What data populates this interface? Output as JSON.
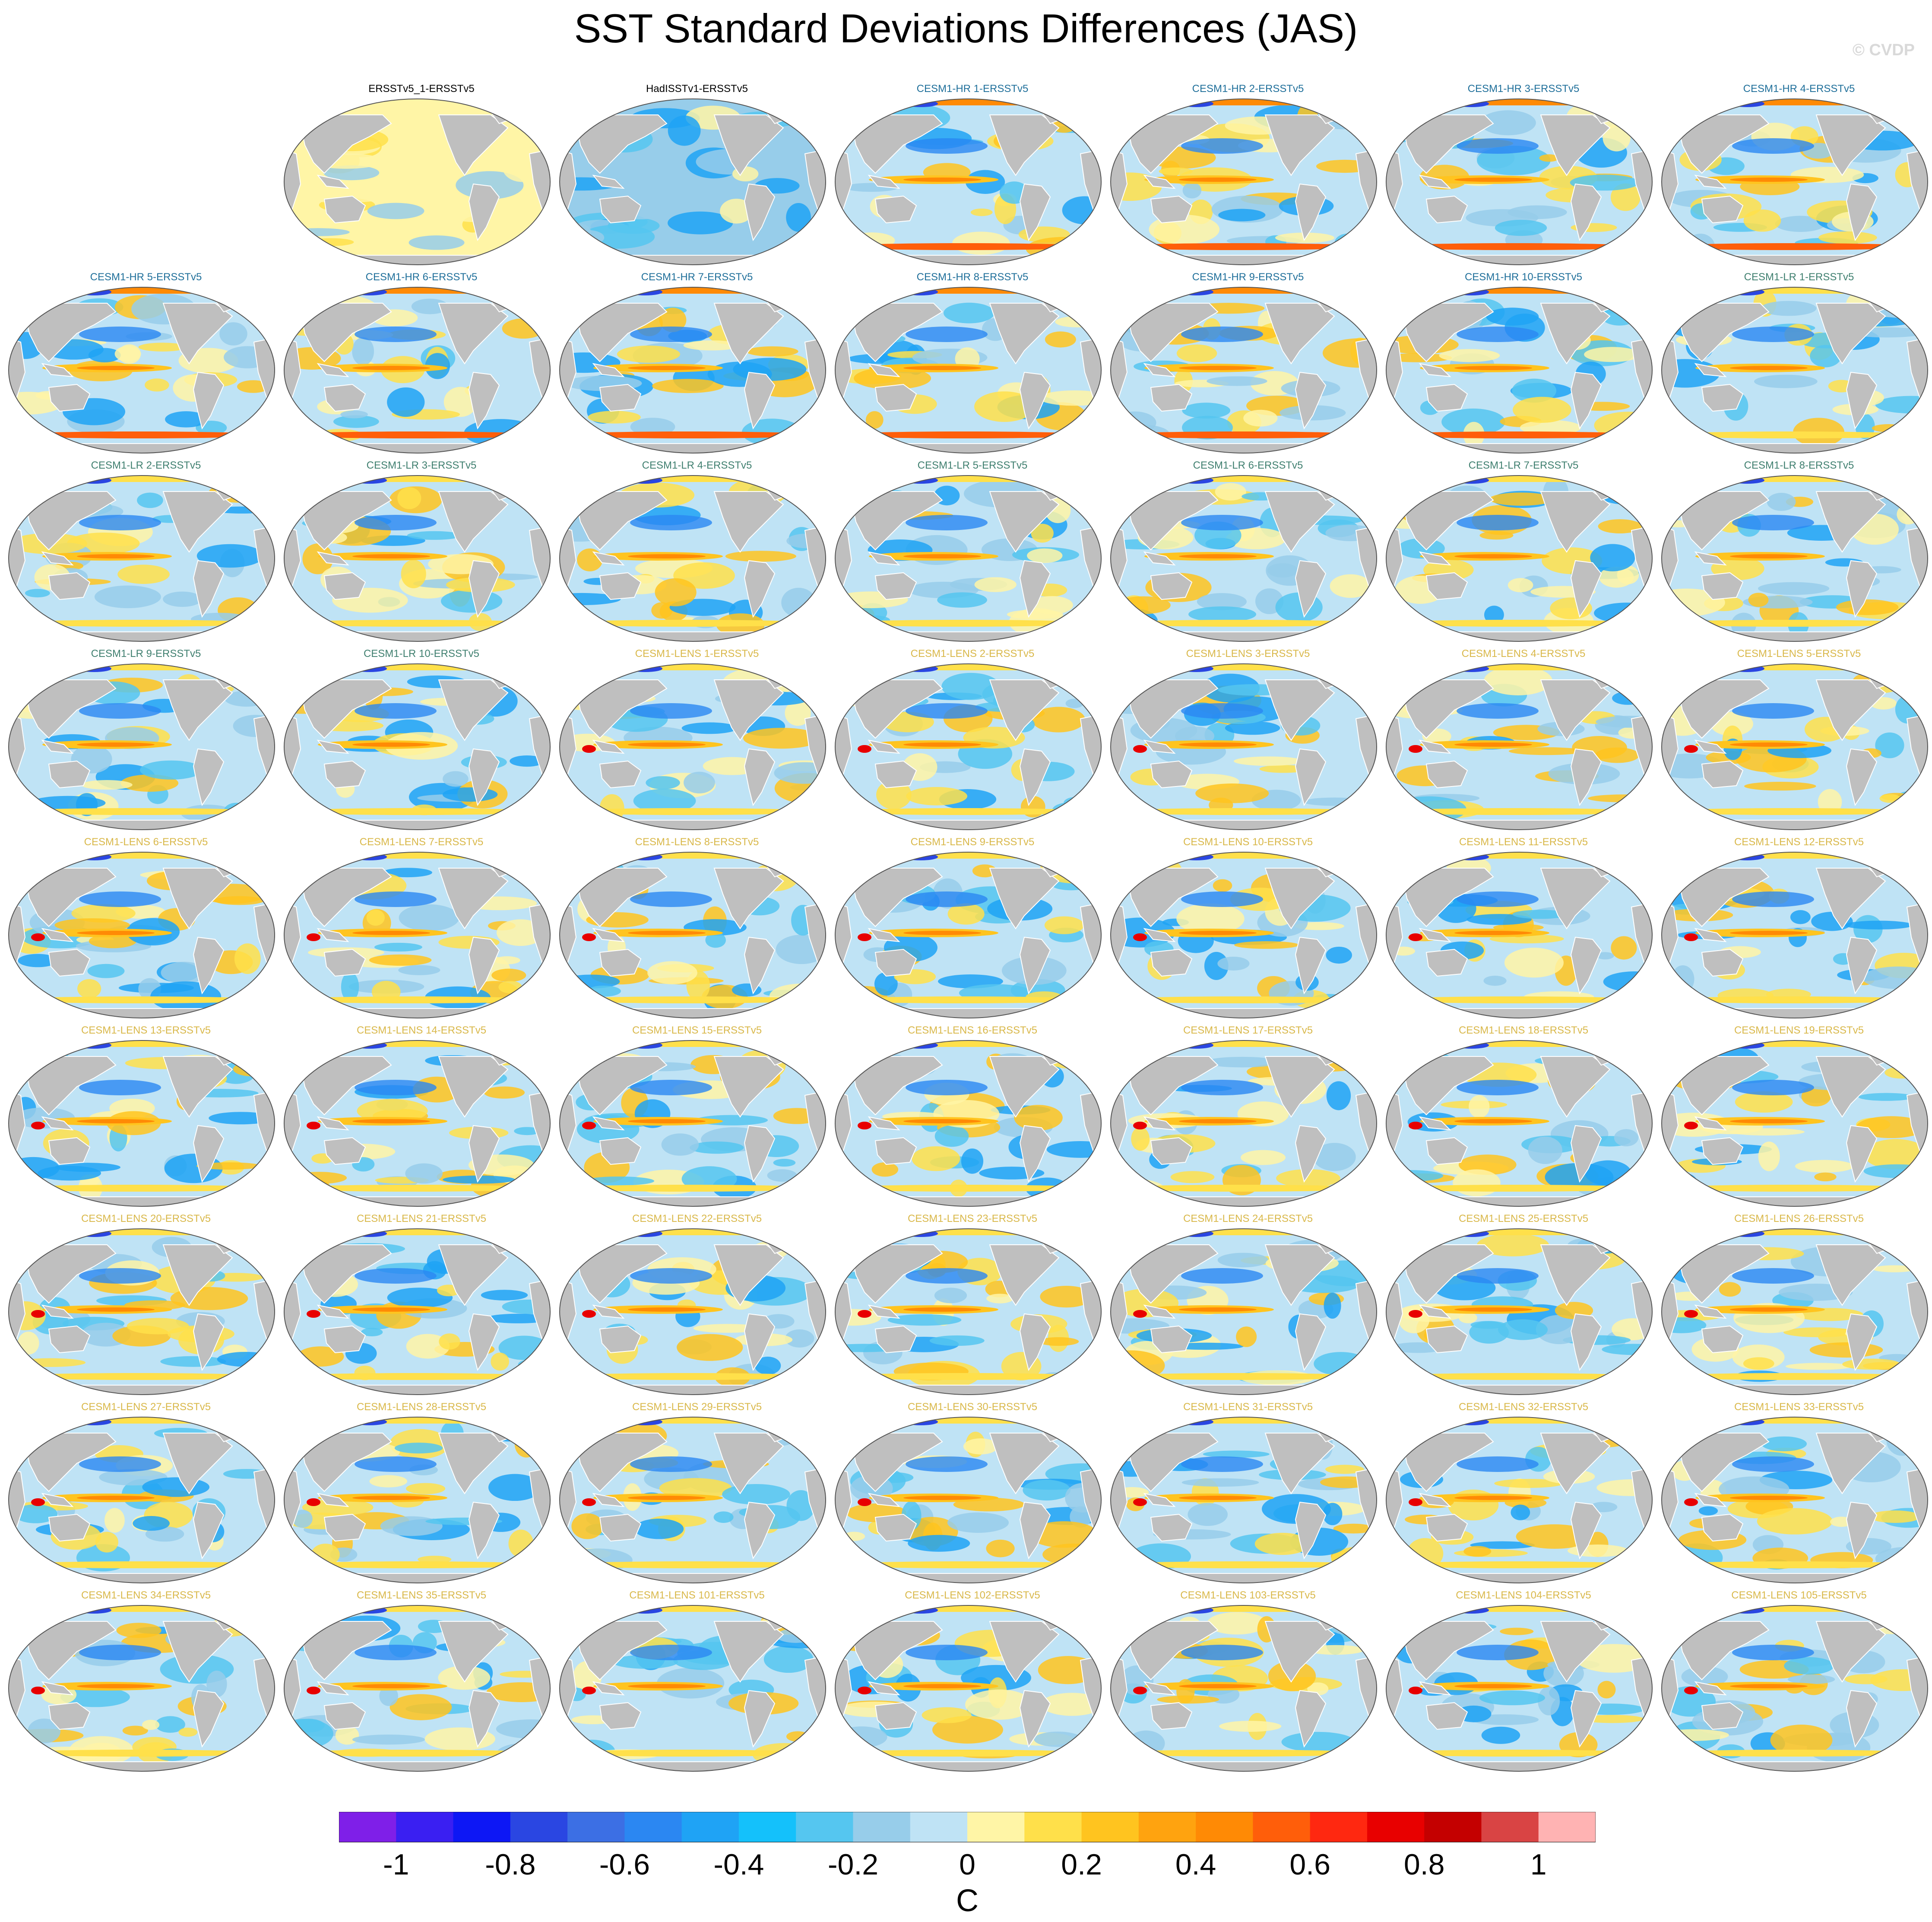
{
  "title": "SST Standard Deviations Differences (JAS)",
  "credit": "© CVDP",
  "colors": {
    "obs_label": "#000000",
    "cesm1_hr_label": "#1f6f9a",
    "cesm1_lr_label": "#3f7f6f",
    "cesm1_lens_label": "#d9b84a",
    "land": "#bfbfbf"
  },
  "panels": [
    {
      "label": "ERSSTv5_1-ERSSTv5",
      "group": "obs",
      "pattern": "warm-weak"
    },
    {
      "label": "HadISSTv1-ERSSTv5",
      "group": "obs",
      "pattern": "cool"
    },
    {
      "label": "CESM1-HR 1-ERSSTv5",
      "group": "hr"
    },
    {
      "label": "CESM1-HR 2-ERSSTv5",
      "group": "hr"
    },
    {
      "label": "CESM1-HR 3-ERSSTv5",
      "group": "hr"
    },
    {
      "label": "CESM1-HR 4-ERSSTv5",
      "group": "hr"
    },
    {
      "label": "CESM1-HR 5-ERSSTv5",
      "group": "hr"
    },
    {
      "label": "CESM1-HR 6-ERSSTv5",
      "group": "hr"
    },
    {
      "label": "CESM1-HR 7-ERSSTv5",
      "group": "hr"
    },
    {
      "label": "CESM1-HR 8-ERSSTv5",
      "group": "hr"
    },
    {
      "label": "CESM1-HR 9-ERSSTv5",
      "group": "hr"
    },
    {
      "label": "CESM1-HR 10-ERSSTv5",
      "group": "hr"
    },
    {
      "label": "CESM1-LR 1-ERSSTv5",
      "group": "lr"
    },
    {
      "label": "CESM1-LR 2-ERSSTv5",
      "group": "lr"
    },
    {
      "label": "CESM1-LR 3-ERSSTv5",
      "group": "lr"
    },
    {
      "label": "CESM1-LR 4-ERSSTv5",
      "group": "lr"
    },
    {
      "label": "CESM1-LR 5-ERSSTv5",
      "group": "lr"
    },
    {
      "label": "CESM1-LR 6-ERSSTv5",
      "group": "lr"
    },
    {
      "label": "CESM1-LR 7-ERSSTv5",
      "group": "lr"
    },
    {
      "label": "CESM1-LR 8-ERSSTv5",
      "group": "lr"
    },
    {
      "label": "CESM1-LR 9-ERSSTv5",
      "group": "lr"
    },
    {
      "label": "CESM1-LR 10-ERSSTv5",
      "group": "lr"
    },
    {
      "label": "CESM1-LENS 1-ERSSTv5",
      "group": "lens"
    },
    {
      "label": "CESM1-LENS 2-ERSSTv5",
      "group": "lens"
    },
    {
      "label": "CESM1-LENS 3-ERSSTv5",
      "group": "lens"
    },
    {
      "label": "CESM1-LENS 4-ERSSTv5",
      "group": "lens"
    },
    {
      "label": "CESM1-LENS 5-ERSSTv5",
      "group": "lens"
    },
    {
      "label": "CESM1-LENS 6-ERSSTv5",
      "group": "lens"
    },
    {
      "label": "CESM1-LENS 7-ERSSTv5",
      "group": "lens"
    },
    {
      "label": "CESM1-LENS 8-ERSSTv5",
      "group": "lens"
    },
    {
      "label": "CESM1-LENS 9-ERSSTv5",
      "group": "lens"
    },
    {
      "label": "CESM1-LENS 10-ERSSTv5",
      "group": "lens"
    },
    {
      "label": "CESM1-LENS 11-ERSSTv5",
      "group": "lens"
    },
    {
      "label": "CESM1-LENS 12-ERSSTv5",
      "group": "lens"
    },
    {
      "label": "CESM1-LENS 13-ERSSTv5",
      "group": "lens"
    },
    {
      "label": "CESM1-LENS 14-ERSSTv5",
      "group": "lens"
    },
    {
      "label": "CESM1-LENS 15-ERSSTv5",
      "group": "lens"
    },
    {
      "label": "CESM1-LENS 16-ERSSTv5",
      "group": "lens"
    },
    {
      "label": "CESM1-LENS 17-ERSSTv5",
      "group": "lens"
    },
    {
      "label": "CESM1-LENS 18-ERSSTv5",
      "group": "lens"
    },
    {
      "label": "CESM1-LENS 19-ERSSTv5",
      "group": "lens"
    },
    {
      "label": "CESM1-LENS 20-ERSSTv5",
      "group": "lens"
    },
    {
      "label": "CESM1-LENS 21-ERSSTv5",
      "group": "lens"
    },
    {
      "label": "CESM1-LENS 22-ERSSTv5",
      "group": "lens"
    },
    {
      "label": "CESM1-LENS 23-ERSSTv5",
      "group": "lens"
    },
    {
      "label": "CESM1-LENS 24-ERSSTv5",
      "group": "lens"
    },
    {
      "label": "CESM1-LENS 25-ERSSTv5",
      "group": "lens"
    },
    {
      "label": "CESM1-LENS 26-ERSSTv5",
      "group": "lens"
    },
    {
      "label": "CESM1-LENS 27-ERSSTv5",
      "group": "lens"
    },
    {
      "label": "CESM1-LENS 28-ERSSTv5",
      "group": "lens"
    },
    {
      "label": "CESM1-LENS 29-ERSSTv5",
      "group": "lens"
    },
    {
      "label": "CESM1-LENS 30-ERSSTv5",
      "group": "lens"
    },
    {
      "label": "CESM1-LENS 31-ERSSTv5",
      "group": "lens"
    },
    {
      "label": "CESM1-LENS 32-ERSSTv5",
      "group": "lens"
    },
    {
      "label": "CESM1-LENS 33-ERSSTv5",
      "group": "lens"
    },
    {
      "label": "CESM1-LENS 34-ERSSTv5",
      "group": "lens"
    },
    {
      "label": "CESM1-LENS 35-ERSSTv5",
      "group": "lens"
    },
    {
      "label": "CESM1-LENS 101-ERSSTv5",
      "group": "lens"
    },
    {
      "label": "CESM1-LENS 102-ERSSTv5",
      "group": "lens"
    },
    {
      "label": "CESM1-LENS 103-ERSSTv5",
      "group": "lens"
    },
    {
      "label": "CESM1-LENS 104-ERSSTv5",
      "group": "lens"
    },
    {
      "label": "CESM1-LENS 105-ERSSTv5",
      "group": "lens"
    }
  ],
  "colorbar": {
    "colors": [
      "#7f1fe8",
      "#3a1ff2",
      "#0d17f5",
      "#2a46e2",
      "#3c6fe4",
      "#2b87f2",
      "#1fa3f5",
      "#14c1fb",
      "#55c6f0",
      "#97cdea",
      "#bfe3f5",
      "#fff5a6",
      "#ffe04a",
      "#ffc41f",
      "#ffa30f",
      "#ff8a05",
      "#ff5e0a",
      "#ff2810",
      "#e80000",
      "#c40000",
      "#d94444",
      "#ffb3b3"
    ],
    "tick_labels": [
      "-1",
      "-0.8",
      "-0.6",
      "-0.4",
      "-0.2",
      "0",
      "0.2",
      "0.4",
      "0.6",
      "0.8",
      "1"
    ],
    "units": "C"
  }
}
